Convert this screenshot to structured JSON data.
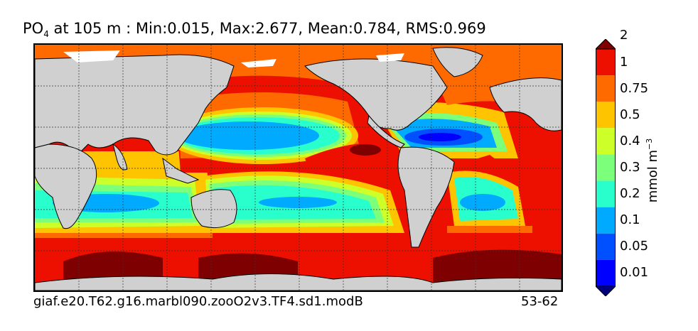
{
  "title": {
    "variable": "PO",
    "subscript": "4",
    "rest": " at 105 m : Min:0.015, Max:2.677, Mean:0.784, RMS:0.969"
  },
  "caption": {
    "case": "giaf.e20.T62.g16.marbl090.zooO2v3.TF4.sd1.modB",
    "years": "53-62"
  },
  "colorbar": {
    "unit": "mmol m",
    "unit_exp": "−3",
    "levels": [
      "0.01",
      "0.05",
      "0.1",
      "0.2",
      "0.3",
      "0.4",
      "0.5",
      "0.75",
      "1",
      "2"
    ],
    "colors": [
      "#00007f",
      "#0000ff",
      "#0050ff",
      "#00aaff",
      "#29ffcd",
      "#7cff7a",
      "#cdff29",
      "#ffc400",
      "#ff6a00",
      "#ed0f00",
      "#7f0000"
    ],
    "extend": "both"
  },
  "map": {
    "land_color": "#d0d0d0",
    "sea_ice_color": "#ffffff",
    "grid": "dashed"
  }
}
